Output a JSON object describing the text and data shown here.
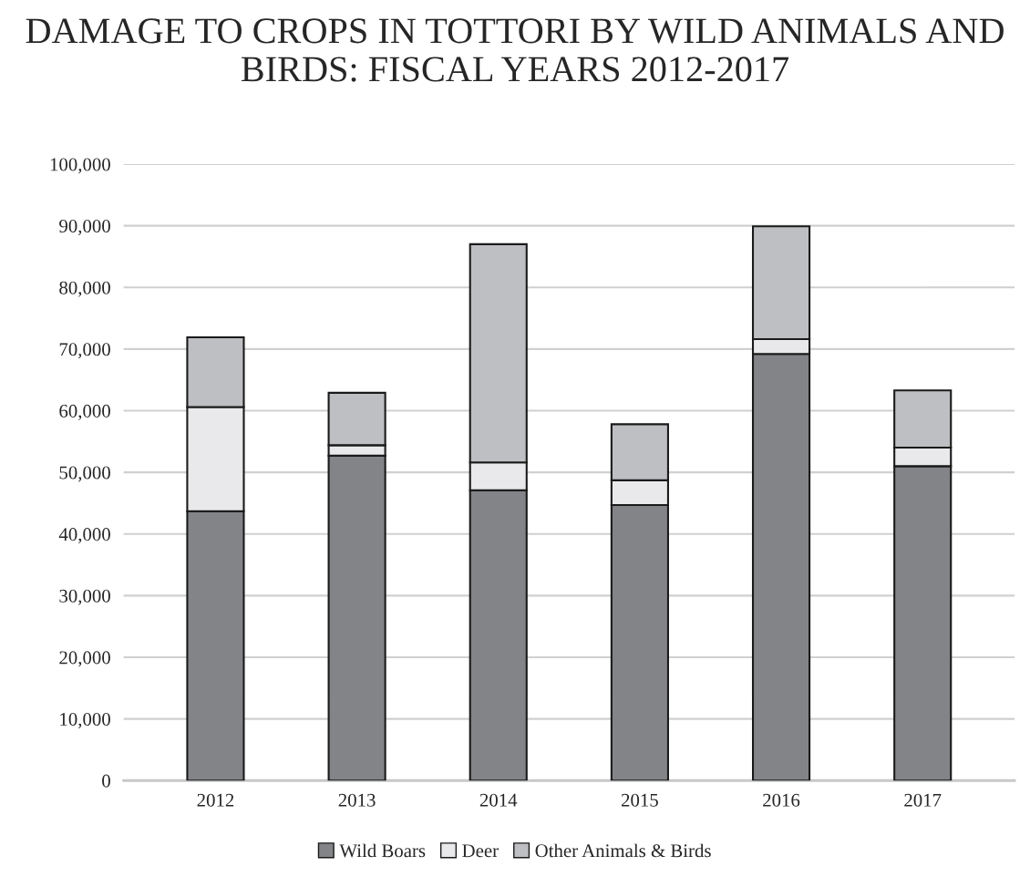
{
  "chart_data": {
    "type": "bar",
    "title": "DAMAGE TO CROPS IN TOTTORI BY WILD ANIMALS AND BIRDS: FISCAL YEARS 2012-2017",
    "categories": [
      "2012",
      "2013",
      "2014",
      "2015",
      "2016",
      "2017"
    ],
    "stacked": true,
    "series": [
      {
        "name": "Wild Boars",
        "color": "#838488",
        "values": [
          43700,
          52700,
          47100,
          44700,
          69200,
          51000
        ]
      },
      {
        "name": "Deer",
        "color": "#e9e9eb",
        "values": [
          16900,
          1700,
          4500,
          4000,
          2400,
          3000
        ]
      },
      {
        "name": "Other Animals & Birds",
        "color": "#bebfc2",
        "values": [
          11300,
          8500,
          35400,
          9100,
          18300,
          9300
        ]
      }
    ],
    "ylim": [
      0,
      100000
    ],
    "yticks": [
      {
        "value": 0,
        "label": "0"
      },
      {
        "value": 10000,
        "label": "10,000"
      },
      {
        "value": 20000,
        "label": "20,000"
      },
      {
        "value": 30000,
        "label": "30,000"
      },
      {
        "value": 40000,
        "label": "40,000"
      },
      {
        "value": 50000,
        "label": "50,000"
      },
      {
        "value": 60000,
        "label": "60,000"
      },
      {
        "value": 70000,
        "label": "70,000"
      },
      {
        "value": 80000,
        "label": "80,000"
      },
      {
        "value": 90000,
        "label": "90,000"
      },
      {
        "value": 100000,
        "label": "100,000"
      }
    ],
    "grid": "y",
    "legend": "bottom"
  }
}
